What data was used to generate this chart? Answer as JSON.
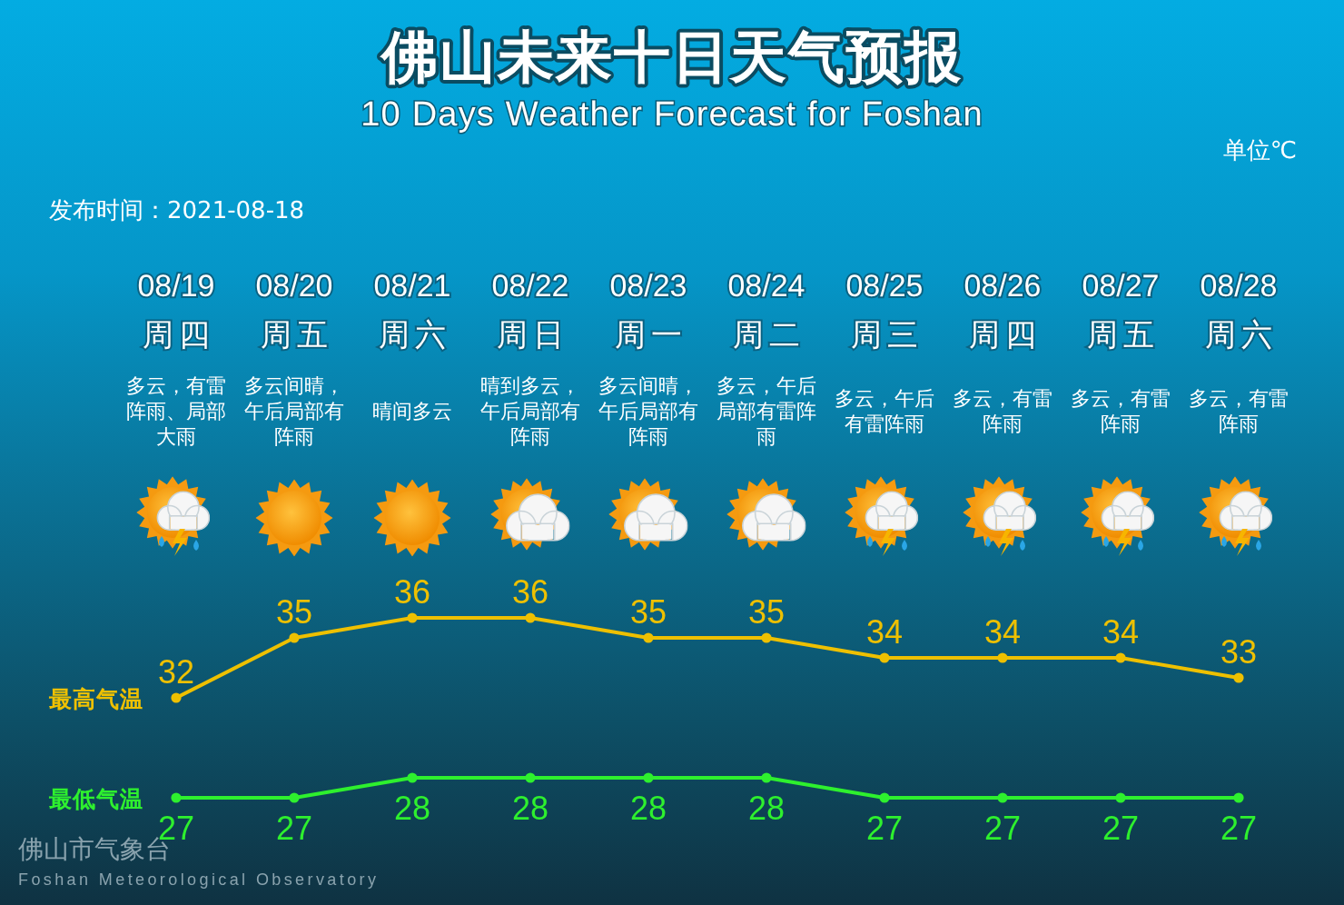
{
  "chart_data": {
    "type": "line",
    "title": "佛山未来十日天气预报",
    "subtitle": "10 Days Weather Forecast for Foshan",
    "categories": [
      "08/19",
      "08/20",
      "08/21",
      "08/22",
      "08/23",
      "08/24",
      "08/25",
      "08/26",
      "08/27",
      "08/28"
    ],
    "series": [
      {
        "name": "最高气温",
        "color": "#eec000",
        "values": [
          32,
          35,
          36,
          36,
          35,
          35,
          34,
          34,
          34,
          33
        ]
      },
      {
        "name": "最低气温",
        "color": "#2ef02e",
        "values": [
          27,
          27,
          28,
          28,
          28,
          28,
          27,
          27,
          27,
          27
        ]
      }
    ],
    "data_labels": true,
    "marker": "circle",
    "annotations": [
      "单位℃",
      "发布时间：2021-08-18",
      "周四",
      "周五",
      "周六",
      "周日",
      "周一",
      "周二",
      "周三",
      "周四",
      "周五",
      "周六",
      "多云，有雷阵雨、局部大雨",
      "多云间晴，午后局部有阵雨",
      "晴间多云",
      "晴到多云，午后局部有阵雨",
      "多云间晴，午后局部有阵雨",
      "多云，午后局部有雷阵雨",
      "多云，午后有雷阵雨",
      "多云，有雷阵雨",
      "多云，有雷阵雨",
      "多云，有雷阵雨",
      "佛山市气象台",
      "Foshan Meteorological Observatory"
    ]
  }
}
